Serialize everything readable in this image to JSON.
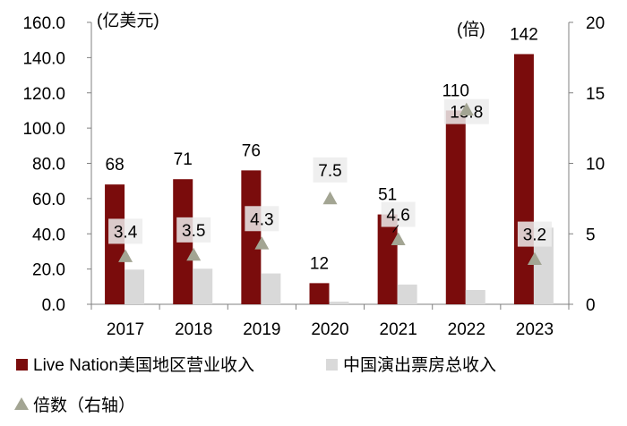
{
  "chart_data": {
    "type": "bar",
    "categories": [
      "2017",
      "2018",
      "2019",
      "2020",
      "2021",
      "2022",
      "2023"
    ],
    "series": [
      {
        "name": "Live Nation美国地区营业收入",
        "kind": "bar",
        "axis": "left",
        "color": "#7a0c0c",
        "values": [
          68,
          71,
          76,
          12,
          51,
          110,
          142
        ]
      },
      {
        "name": "中国演出票房总收入",
        "kind": "bar",
        "axis": "left",
        "color": "#d9d9d9",
        "values": [
          19.7,
          20.2,
          17.5,
          1.5,
          11.2,
          8.1,
          43.5
        ]
      },
      {
        "name": "倍数（右轴）",
        "kind": "triangle",
        "axis": "right",
        "color": "#a3a593",
        "values": [
          3.4,
          3.5,
          4.3,
          7.5,
          4.6,
          13.8,
          3.2
        ]
      }
    ],
    "bar_value_labels": [
      "68",
      "71",
      "76",
      "12",
      "51",
      "110",
      "142"
    ],
    "ratio_labels": [
      "3.4",
      "3.5",
      "4.3",
      "7.5",
      "4.6",
      "13.8",
      "3.2"
    ],
    "left_axis": {
      "unit": "(亿美元)",
      "min": 0,
      "max": 160,
      "step": 20,
      "ticks": [
        "0.0",
        "20.0",
        "40.0",
        "60.0",
        "80.0",
        "100.0",
        "120.0",
        "140.0",
        "160.0"
      ]
    },
    "right_axis": {
      "unit": "(倍)",
      "min": 0,
      "max": 20,
      "step": 5,
      "ticks": [
        "0",
        "5",
        "10",
        "15",
        "20"
      ]
    },
    "legend": [
      {
        "label": "Live Nation美国地区营业收入",
        "marker": "square",
        "color": "#7a0c0c"
      },
      {
        "label": "中国演出票房总收入",
        "marker": "square",
        "color": "#d9d9d9"
      },
      {
        "label": "倍数（右轴）",
        "marker": "triangle",
        "color": "#a3a593"
      }
    ]
  }
}
